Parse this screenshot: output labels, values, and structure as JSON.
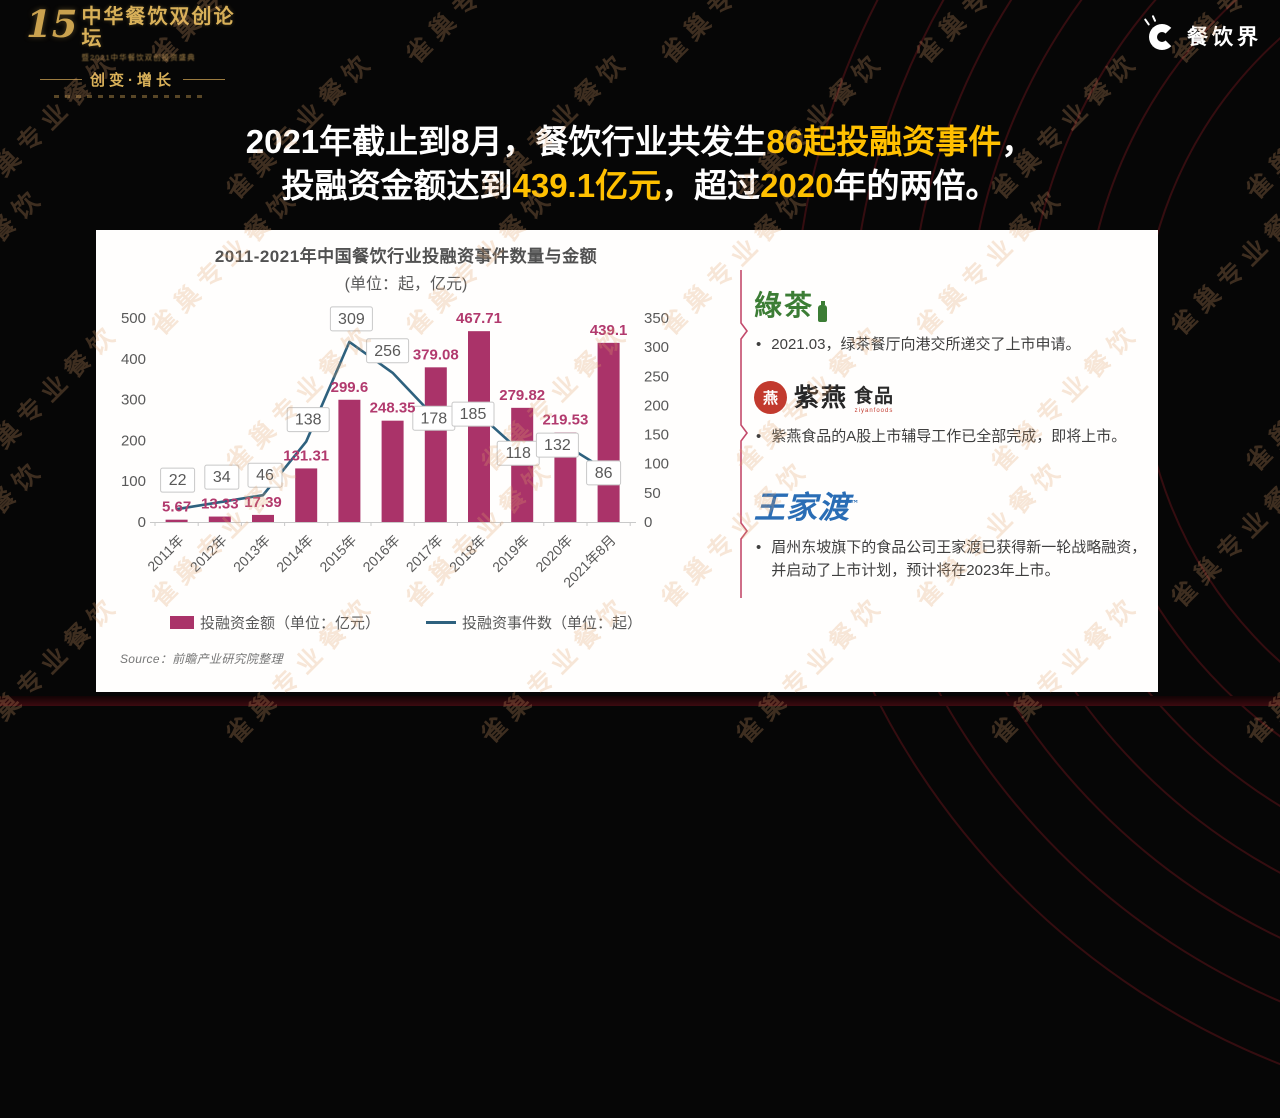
{
  "header": {
    "event_logo": {
      "number": "15",
      "title": "中华餐饮双创论坛",
      "subtitle": "暨2021中华餐饮双创投资盛典",
      "tagline": "创变·增长"
    },
    "site_logo": {
      "name": "餐饮界",
      "icon": "c-ring-icon"
    }
  },
  "headline": {
    "accent_color": "#ffc000",
    "base_color": "#ffffff",
    "lines": [
      {
        "segments": [
          {
            "text": "2021年截止到8月，餐饮行业共发生",
            "accent": false
          },
          {
            "text": "86起投融资事件",
            "accent": true
          },
          {
            "text": "，",
            "accent": false
          }
        ]
      },
      {
        "segments": [
          {
            "text": "投融资金额达到",
            "accent": false
          },
          {
            "text": "439.1亿元",
            "accent": true
          },
          {
            "text": "，超过",
            "accent": false
          },
          {
            "text": "2020",
            "accent": true
          },
          {
            "text": "年的两倍。",
            "accent": false
          }
        ]
      }
    ]
  },
  "chart_data": {
    "type": "combo",
    "title": "2011-2021年中国餐饮行业投融资事件数量与金额",
    "subtitle": "(单位：起，亿元)",
    "categories": [
      "2011年",
      "2012年",
      "2013年",
      "2014年",
      "2015年",
      "2016年",
      "2017年",
      "2018年",
      "2019年",
      "2020年",
      "2021年8月"
    ],
    "series": [
      {
        "name": "投融资金额（单位：亿元）",
        "type": "bar",
        "axis": "left",
        "color": "#aa3369",
        "label_color": "#b23a6e",
        "values": [
          5.67,
          13.33,
          17.39,
          131.31,
          299.6,
          248.35,
          379.08,
          467.71,
          279.82,
          219.53,
          439.1
        ]
      },
      {
        "name": "投融资事件数（单位：起）",
        "type": "line",
        "axis": "right",
        "color": "#2e617e",
        "values": [
          22,
          34,
          46,
          138,
          309,
          256,
          178,
          185,
          118,
          132,
          86
        ]
      }
    ],
    "left_axis": {
      "min": 0,
      "max": 500,
      "step": 100
    },
    "right_axis": {
      "min": 0,
      "max": 350,
      "step": 50
    },
    "grid": false,
    "legend_position": "bottom",
    "source": "Source：前瞻产业研究院整理"
  },
  "brands": [
    {
      "name": "绿茶",
      "logo_text": "綠茶",
      "bullet": "2021.03，绿茶餐厅向港交所递交了上市申请。"
    },
    {
      "name": "紫燕食品",
      "logo_text": "紫燕",
      "logo_suffix": "食品",
      "logo_sub": "ziyanfoods",
      "logo_seal": "燕",
      "bullet": "紫燕食品的A股上市辅导工作已全部完成，即将上市。"
    },
    {
      "name": "王家渡",
      "logo_text": "王家渡",
      "bullet": "眉州东坡旗下的食品公司王家渡已获得新一轮战略融资，并启动了上市计划，预计将在2023年上市。"
    }
  ],
  "watermark": {
    "text": "雀巢专业餐饮"
  }
}
